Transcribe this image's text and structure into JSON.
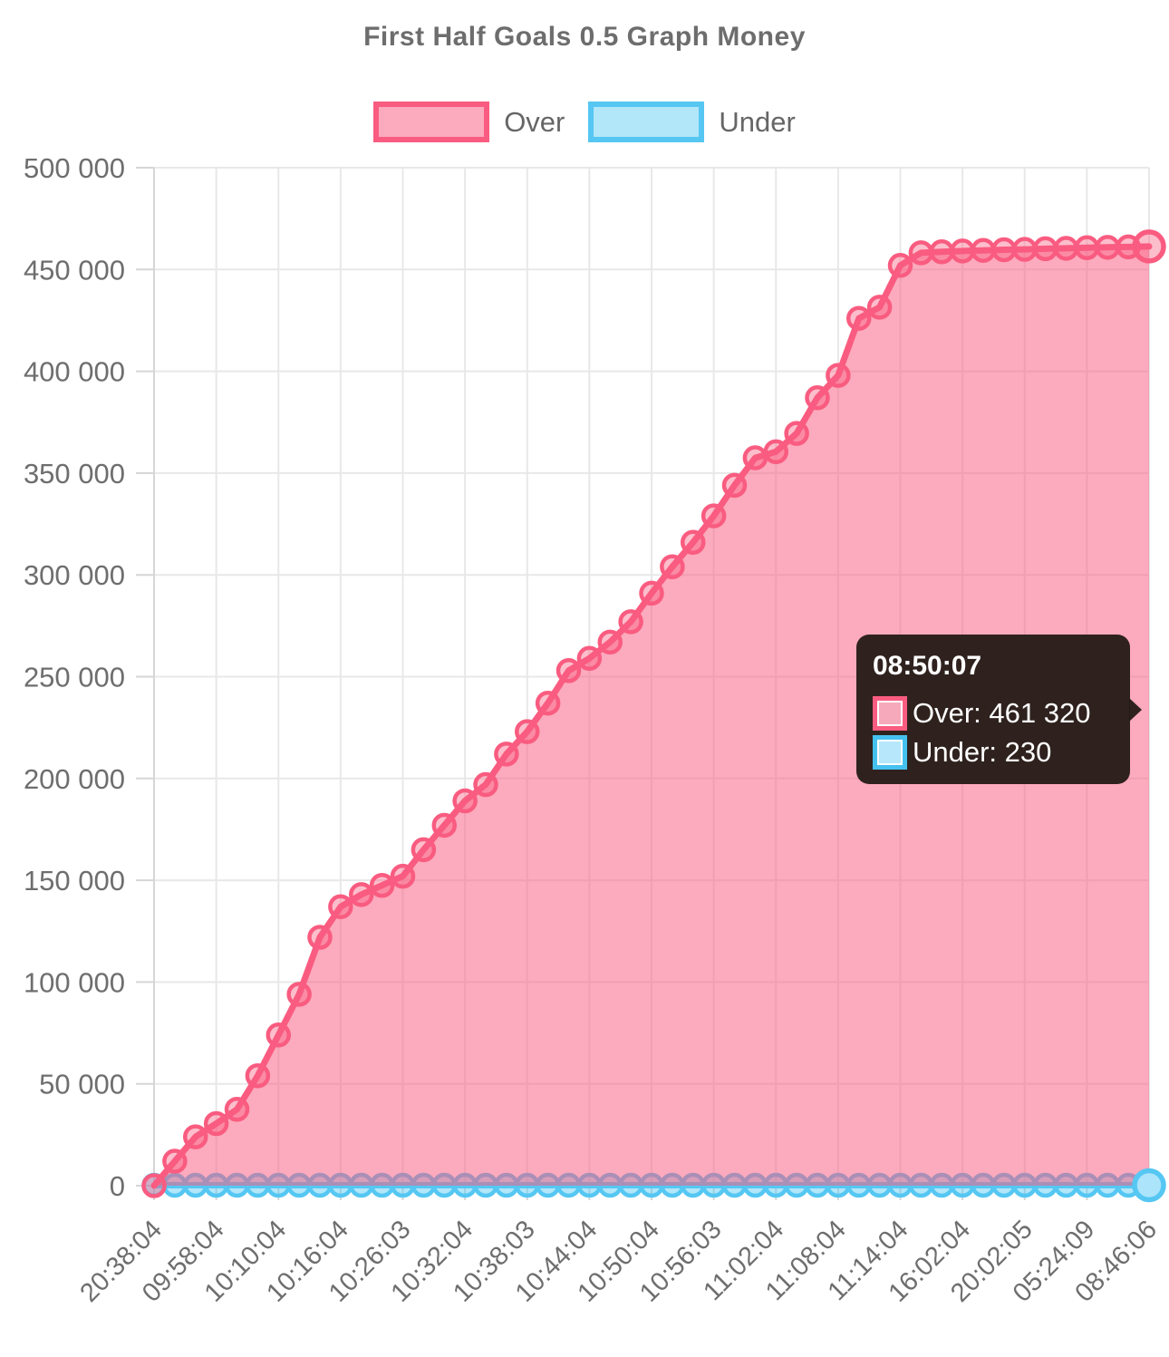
{
  "chart_data": {
    "type": "area",
    "title": "First Half Goals 0.5 Graph Money",
    "x_tick_labels": [
      "20:38:04",
      "09:58:04",
      "10:10:04",
      "10:16:04",
      "10:26:03",
      "10:32:04",
      "10:38:03",
      "10:44:04",
      "10:50:04",
      "10:56:03",
      "11:02:04",
      "11:08:04",
      "11:14:04",
      "16:02:04",
      "20:02:05",
      "05:24:09",
      "08:46:06"
    ],
    "tick_every": 3,
    "ylim": [
      0,
      500000
    ],
    "y_tick_step": 50000,
    "y_tick_labels": [
      "0",
      "50 000",
      "100 000",
      "150 000",
      "200 000",
      "250 000",
      "300 000",
      "350 000",
      "400 000",
      "450 000",
      "500 000"
    ],
    "grid": true,
    "legend_position": "top",
    "series": [
      {
        "name": "Over",
        "color": "#f95c80",
        "area_fill": "rgba(250,92,128,0.52)",
        "marker_fill": "rgba(249,92,128,0.40)",
        "values": [
          0,
          12000,
          24000,
          30500,
          37500,
          54000,
          74000,
          94000,
          122000,
          137000,
          143000,
          147500,
          152000,
          165000,
          177000,
          189000,
          197000,
          212000,
          223000,
          237000,
          253000,
          259000,
          267000,
          277000,
          291000,
          304000,
          316000,
          329000,
          344000,
          357500,
          360500,
          369500,
          387000,
          398000,
          426000,
          431500,
          452000,
          458200,
          458700,
          459100,
          459400,
          459700,
          459900,
          460200,
          460400,
          460700,
          460900,
          461100,
          461320
        ]
      },
      {
        "name": "Under",
        "color": "#55c7f2",
        "active_fill": "#abe4fb",
        "marker_fill": "rgba(85,199,242,0.45)",
        "values": [
          230,
          230,
          230,
          230,
          230,
          230,
          230,
          230,
          230,
          230,
          230,
          230,
          230,
          230,
          230,
          230,
          230,
          230,
          230,
          230,
          230,
          230,
          230,
          230,
          230,
          230,
          230,
          230,
          230,
          230,
          230,
          230,
          230,
          230,
          230,
          230,
          230,
          230,
          230,
          230,
          230,
          230,
          230,
          230,
          230,
          230,
          230,
          230,
          230
        ]
      }
    ],
    "colors": {
      "grid": "#e8e8e8",
      "axis": "#d6d6d6",
      "text": "#6e6e6e"
    }
  },
  "tooltip": {
    "title": "08:50:07",
    "rows": [
      {
        "text": "Over: 461 320",
        "swatch_fill": "#f7a9bc",
        "swatch_border": "#f95c80"
      },
      {
        "text": "Under: 230",
        "swatch_fill": "#b7e7fa",
        "swatch_border": "#45c1f0"
      }
    ]
  }
}
